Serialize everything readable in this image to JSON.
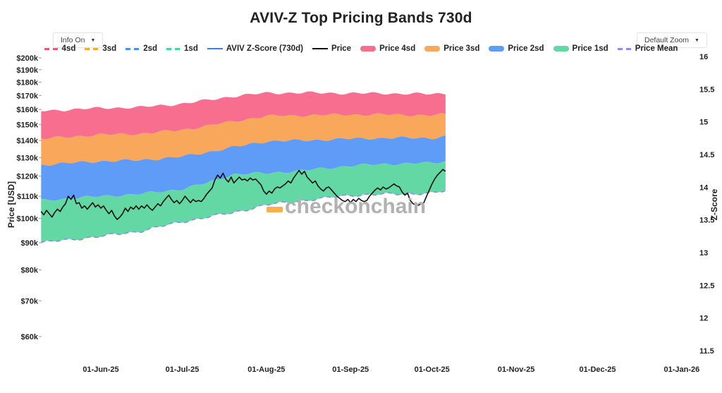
{
  "header": {
    "title": "AVIV-Z Top Pricing Bands 730d",
    "info_button": "Info On",
    "zoom_button": "Default Zoom",
    "caret": "▼"
  },
  "watermark": {
    "text": "checkonchain"
  },
  "axes": {
    "left_title": "Price [USD]",
    "right_title": "Z-Score"
  },
  "colors": {
    "band_4sd": "#f76e8e",
    "band_3sd": "#f9a85b",
    "band_2sd": "#5e9cf7",
    "band_1sd": "#63d7a4",
    "price_line": "#111111",
    "mean_line": "#8b8de8",
    "legend_4sd": "#f2557a",
    "legend_3sd": "#f5a63f",
    "legend_2sd": "#4a8fe8",
    "legend_1sd": "#43d6a0",
    "legend_zscore": "#3d7fe0",
    "watermark_dash": "#f7b04f",
    "watermark_text": "#b1b1b1"
  },
  "legend": [
    {
      "label": "4sd",
      "swatch": "dash",
      "color": "#f2557a"
    },
    {
      "label": "3sd",
      "swatch": "dash",
      "color": "#f5a63f"
    },
    {
      "label": "2sd",
      "swatch": "dash",
      "color": "#4a8fe8"
    },
    {
      "label": "1sd",
      "swatch": "dash",
      "color": "#43d6a0"
    },
    {
      "label": "AVIV Z-Score (730d)",
      "swatch": "line",
      "color": "#3d7fe0"
    },
    {
      "label": "Price",
      "swatch": "line",
      "color": "#111111"
    },
    {
      "label": "Price 4sd",
      "swatch": "fill",
      "color": "#f76e8e"
    },
    {
      "label": "Price 3sd",
      "swatch": "fill",
      "color": "#f9a85b"
    },
    {
      "label": "Price 2sd",
      "swatch": "fill",
      "color": "#5e9cf7"
    },
    {
      "label": "Price 1sd",
      "swatch": "fill",
      "color": "#63d7a4"
    },
    {
      "label": "Price Mean",
      "swatch": "dash",
      "color": "#8b8de8"
    }
  ],
  "chart_data": {
    "type": "area",
    "title": "AVIV-Z Top Pricing Bands 730d",
    "xlabel": "",
    "ylabel_left": "Price [USD]",
    "ylabel_right": "Z-Score",
    "y_left_scale": "log",
    "grid": false,
    "x_start_date": "2025-05-10",
    "x_end_date": "2026-01-05",
    "x_ticks": [
      {
        "label": "01-Jun-25",
        "day": 22
      },
      {
        "label": "01-Jul-25",
        "day": 52
      },
      {
        "label": "01-Aug-25",
        "day": 83
      },
      {
        "label": "01-Sep-25",
        "day": 114
      },
      {
        "label": "01-Oct-25",
        "day": 144
      },
      {
        "label": "01-Nov-25",
        "day": 175
      },
      {
        "label": "01-Dec-25",
        "day": 205
      },
      {
        "label": "01-Jan-26",
        "day": 236
      }
    ],
    "y_left_ticks": [
      {
        "label": "$200k",
        "value": 200
      },
      {
        "label": "$190k",
        "value": 190
      },
      {
        "label": "$180k",
        "value": 180
      },
      {
        "label": "$170k",
        "value": 170
      },
      {
        "label": "$160k",
        "value": 160
      },
      {
        "label": "$150k",
        "value": 150
      },
      {
        "label": "$140k",
        "value": 140
      },
      {
        "label": "$130k",
        "value": 130
      },
      {
        "label": "$120k",
        "value": 120
      },
      {
        "label": "$110k",
        "value": 110
      },
      {
        "label": "$100k",
        "value": 100
      },
      {
        "label": "$90k",
        "value": 90
      },
      {
        "label": "$80k",
        "value": 80
      },
      {
        "label": "$70k",
        "value": 70
      },
      {
        "label": "$60k",
        "value": 60
      }
    ],
    "y_right_ticks": [
      {
        "label": "16",
        "value": 16
      },
      {
        "label": "15.5",
        "value": 15.5
      },
      {
        "label": "15",
        "value": 15
      },
      {
        "label": "14.5",
        "value": 14.5
      },
      {
        "label": "14",
        "value": 14
      },
      {
        "label": "13.5",
        "value": 13.5
      },
      {
        "label": "13",
        "value": 13
      },
      {
        "label": "12.5",
        "value": 12.5
      },
      {
        "label": "12",
        "value": 12
      },
      {
        "label": "11.5",
        "value": 11.5
      }
    ],
    "bands_unit": "USD thousands",
    "bands": {
      "days": [
        0,
        22,
        36,
        52,
        61,
        71,
        83,
        97,
        114,
        128,
        144,
        149
      ],
      "dates": [
        "2025-05-10",
        "2025-06-01",
        "2025-06-15",
        "2025-07-01",
        "2025-07-10",
        "2025-07-20",
        "2025-08-01",
        "2025-08-15",
        "2025-09-01",
        "2025-09-15",
        "2025-10-01",
        "2025-10-06"
      ],
      "mean": [
        90,
        92.5,
        94.5,
        98.5,
        100.5,
        102.5,
        106,
        108,
        110.5,
        111,
        111.5,
        112.5
      ],
      "sd1": [
        108,
        110,
        111,
        113.5,
        116.5,
        121,
        121.5,
        123,
        125.5,
        126.5,
        127,
        128
      ],
      "sd2": [
        126,
        128,
        128.5,
        130.5,
        133,
        136,
        139.5,
        140,
        141,
        141.5,
        141.5,
        142.5
      ],
      "sd3": [
        141,
        143.5,
        144,
        146.5,
        149,
        152,
        155.5,
        156,
        156.5,
        156.5,
        156,
        156.5
      ],
      "sd4": [
        159,
        161,
        161.5,
        164,
        166.5,
        169.5,
        171.8,
        172,
        171.6,
        171.5,
        171,
        171.5
      ]
    },
    "price": {
      "start": "2025-05-10",
      "interval_days": 1,
      "unit": "USD thousands",
      "values": [
        103,
        101.5,
        103.5,
        102,
        100.5,
        102.5,
        104,
        103,
        105,
        106.5,
        110,
        108.5,
        110.5,
        106.5,
        107,
        104.5,
        105.5,
        104,
        105.5,
        107,
        105,
        106,
        104.5,
        105.5,
        103.5,
        102,
        103.5,
        101,
        99.5,
        100.5,
        102,
        104.5,
        103,
        105,
        104,
        105.5,
        104,
        105.5,
        104.5,
        106,
        104.5,
        103.5,
        105,
        106.5,
        105.5,
        107.5,
        109,
        110.5,
        108.5,
        107,
        108,
        106.5,
        108,
        110,
        108.5,
        107,
        108.5,
        107.5,
        108,
        107.5,
        109,
        111,
        112.5,
        114,
        118,
        120.5,
        119,
        121.5,
        118.5,
        117,
        119.5,
        116.5,
        118,
        119.5,
        118,
        118.5,
        117.5,
        119,
        118,
        118.5,
        117,
        115.5,
        112.5,
        111,
        112.5,
        111.5,
        113.5,
        114.5,
        114,
        115,
        116,
        117.5,
        116.5,
        119,
        121,
        123,
        121,
        122.5,
        119.5,
        118,
        116.5,
        117.5,
        115,
        113.5,
        112.5,
        114,
        114.5,
        113,
        111.5,
        110,
        109,
        108,
        107.5,
        108.5,
        107,
        108.5,
        107.5,
        109,
        108,
        107.5,
        108,
        110,
        111.5,
        113,
        114,
        113,
        114.5,
        113.5,
        114,
        115,
        116,
        115,
        114.5,
        112,
        110.5,
        111.5,
        108,
        106.5,
        106,
        105.8,
        106.5,
        107,
        110,
        113,
        116,
        118.5,
        120.5,
        122,
        123.5,
        122.5
      ]
    }
  }
}
